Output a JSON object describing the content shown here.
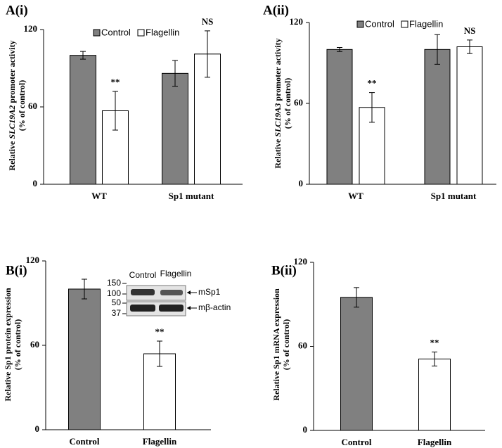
{
  "chart_data": [
    {
      "type": "grouped_bar",
      "title": "A(i)",
      "ylabel": {
        "prefix": "Relative",
        "gene": "SLC19A2",
        "suffix": "promoter activity",
        "sub": "(% of control)"
      },
      "categories": [
        "WT",
        "Sp1 mutant"
      ],
      "series": [
        {
          "name": "Control",
          "color": "#808080",
          "values": [
            100,
            86
          ],
          "errors": [
            3,
            10
          ]
        },
        {
          "name": "Flagellin",
          "color": "#ffffff",
          "values": [
            57,
            101
          ],
          "errors": [
            15,
            18
          ],
          "annotations": [
            "**",
            "NS"
          ]
        }
      ],
      "ylim": [
        0,
        120
      ],
      "yticks": [
        0,
        60,
        120
      ],
      "legend": "top",
      "grid": false
    },
    {
      "type": "grouped_bar",
      "title": "A(ii)",
      "ylabel": {
        "prefix": "Relative",
        "gene": "SLC19A3",
        "suffix": "promoter activity",
        "sub": "(% of control)"
      },
      "categories": [
        "WT",
        "Sp1 mutant"
      ],
      "series": [
        {
          "name": "Control",
          "color": "#808080",
          "values": [
            100,
            100
          ],
          "errors": [
            1.5,
            11
          ]
        },
        {
          "name": "Flagellin",
          "color": "#ffffff",
          "values": [
            57,
            102
          ],
          "errors": [
            11,
            5
          ],
          "annotations": [
            "**",
            "NS"
          ]
        }
      ],
      "ylim": [
        0,
        120
      ],
      "yticks": [
        0,
        60,
        120
      ],
      "legend": "top",
      "grid": false
    },
    {
      "type": "bar",
      "title": "B(i)",
      "ylabel": {
        "prefix": "Relative Sp1 protein expression",
        "sub": "(% of control)"
      },
      "categories": [
        "Control",
        "Flagellin"
      ],
      "values": [
        100,
        54
      ],
      "errors": [
        7,
        9
      ],
      "colors": [
        "#808080",
        "#ffffff"
      ],
      "annotations": [
        null,
        "**"
      ],
      "ylim": [
        0,
        120
      ],
      "yticks": [
        0,
        60,
        120
      ],
      "grid": false,
      "blot": {
        "lanes": [
          "Control",
          "Flagellin"
        ],
        "markers": [
          150,
          100,
          50,
          37
        ],
        "bands": [
          "mSp1",
          "mβ-actin"
        ]
      }
    },
    {
      "type": "bar",
      "title": "B(ii)",
      "ylabel": {
        "prefix": "Relative Sp1 mRNA expression",
        "sub": "(% of control)"
      },
      "categories": [
        "Control",
        "Flagellin"
      ],
      "values": [
        95,
        51
      ],
      "errors": [
        7,
        5
      ],
      "colors": [
        "#808080",
        "#ffffff"
      ],
      "annotations": [
        null,
        "**"
      ],
      "ylim": [
        0,
        120
      ],
      "yticks": [
        0,
        60,
        120
      ],
      "grid": false
    }
  ]
}
